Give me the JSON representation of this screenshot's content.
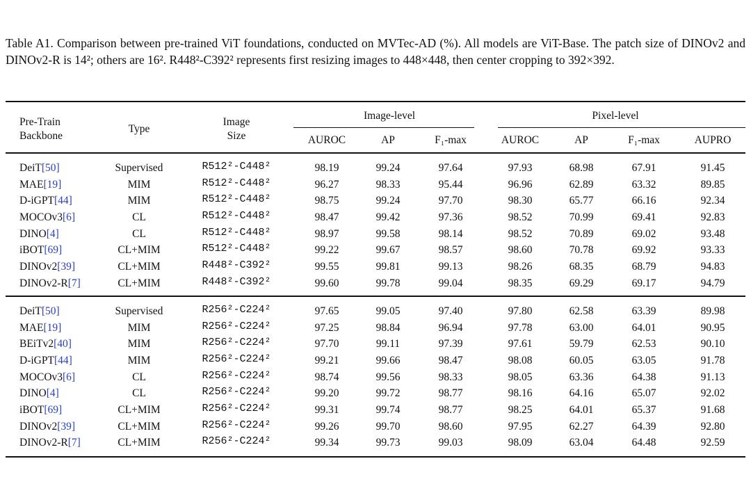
{
  "caption": "Table A1. Comparison between pre-trained ViT foundations, conducted on MVTec-AD (%). All models are ViT-Base. The patch size of DINOv2 and DINOv2-R is 14²; others are 16². R448²-C392² represents first resizing images to 448×448, then center cropping to 392×392.",
  "table": {
    "header": {
      "backbone": [
        "Pre-Train",
        "Backbone"
      ],
      "type": "Type",
      "size": [
        "Image",
        "Size"
      ],
      "groups": [
        "Image-level",
        "Pixel-level"
      ],
      "columns": [
        "AUROC",
        "AP",
        "F₁-max",
        "AUROC",
        "AP",
        "F₁-max",
        "AUPRO"
      ]
    },
    "sections": [
      {
        "rows": [
          [
            "DeiT",
            "[50]",
            "Supervised",
            "R512²-C448²",
            "98.19",
            "99.24",
            "97.64",
            "97.93",
            "68.98",
            "67.91",
            "91.45"
          ],
          [
            "MAE",
            "[19]",
            "MIM",
            "R512²-C448²",
            "96.27",
            "98.33",
            "95.44",
            "96.96",
            "62.89",
            "63.32",
            "89.85"
          ],
          [
            "D-iGPT",
            "[44]",
            "MIM",
            "R512²-C448²",
            "98.75",
            "99.24",
            "97.70",
            "98.30",
            "65.77",
            "66.16",
            "92.34"
          ],
          [
            "MOCOv3",
            "[6]",
            "CL",
            "R512²-C448²",
            "98.47",
            "99.42",
            "97.36",
            "98.52",
            "70.99",
            "69.41",
            "92.83"
          ],
          [
            "DINO",
            "[4]",
            "CL",
            "R512²-C448²",
            "98.97",
            "99.58",
            "98.14",
            "98.52",
            "70.89",
            "69.02",
            "93.48"
          ],
          [
            "iBOT",
            "[69]",
            "CL+MIM",
            "R512²-C448²",
            "99.22",
            "99.67",
            "98.57",
            "98.60",
            "70.78",
            "69.92",
            "93.33"
          ],
          [
            "DINOv2",
            "[39]",
            "CL+MIM",
            "R448²-C392²",
            "99.55",
            "99.81",
            "99.13",
            "98.26",
            "68.35",
            "68.79",
            "94.83"
          ],
          [
            "DINOv2-R",
            "[7]",
            "CL+MIM",
            "R448²-C392²",
            "99.60",
            "99.78",
            "99.04",
            "98.35",
            "69.29",
            "69.17",
            "94.79"
          ]
        ]
      },
      {
        "rows": [
          [
            "DeiT",
            "[50]",
            "Supervised",
            "R256²-C224²",
            "97.65",
            "99.05",
            "97.40",
            "97.80",
            "62.58",
            "63.39",
            "89.98"
          ],
          [
            "MAE",
            "[19]",
            "MIM",
            "R256²-C224²",
            "97.25",
            "98.84",
            "96.94",
            "97.78",
            "63.00",
            "64.01",
            "90.95"
          ],
          [
            "BEiTv2",
            "[40]",
            "MIM",
            "R256²-C224²",
            "97.70",
            "99.11",
            "97.39",
            "97.61",
            "59.79",
            "62.53",
            "90.10"
          ],
          [
            "D-iGPT",
            "[44]",
            "MIM",
            "R256²-C224²",
            "99.21",
            "99.66",
            "98.47",
            "98.08",
            "60.05",
            "63.05",
            "91.78"
          ],
          [
            "MOCOv3",
            "[6]",
            "CL",
            "R256²-C224²",
            "98.74",
            "99.56",
            "98.33",
            "98.05",
            "63.36",
            "64.38",
            "91.13"
          ],
          [
            "DINO",
            "[4]",
            "CL",
            "R256²-C224²",
            "99.20",
            "99.72",
            "98.77",
            "98.16",
            "64.16",
            "65.07",
            "92.02"
          ],
          [
            "iBOT",
            "[69]",
            "CL+MIM",
            "R256²-C224²",
            "99.31",
            "99.74",
            "98.77",
            "98.25",
            "64.01",
            "65.37",
            "91.68"
          ],
          [
            "DINOv2",
            "[39]",
            "CL+MIM",
            "R256²-C224²",
            "99.26",
            "99.70",
            "98.60",
            "97.95",
            "62.27",
            "64.39",
            "92.80"
          ],
          [
            "DINOv2-R",
            "[7]",
            "CL+MIM",
            "R256²-C224²",
            "99.34",
            "99.73",
            "99.03",
            "98.09",
            "63.04",
            "64.48",
            "92.59"
          ]
        ]
      }
    ]
  }
}
